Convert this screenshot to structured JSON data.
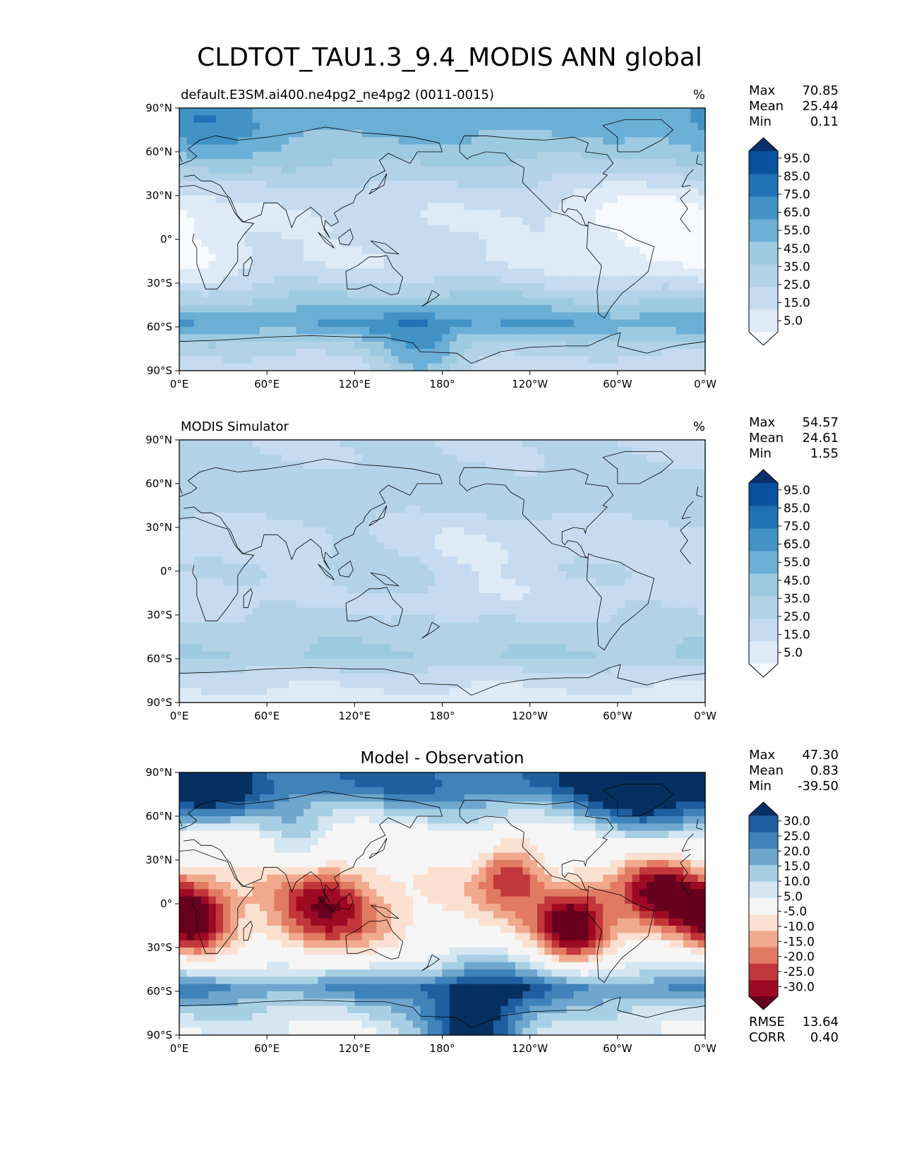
{
  "figure_title": "CLDTOT_TAU1.3_9.4_MODIS ANN global",
  "colors": {
    "blues": [
      "#f7fbff",
      "#deebf7",
      "#c6dbef",
      "#b2d2e8",
      "#9ecae1",
      "#6baed6",
      "#4292c6",
      "#2171b5",
      "#08519c",
      "#08306b"
    ],
    "diverging": [
      "#67001f",
      "#9e0a24",
      "#c1373a",
      "#e17a63",
      "#f0a98c",
      "#fbe0d1",
      "#f5f5f5",
      "#d4e6f1",
      "#a7cfe4",
      "#6ea6ce",
      "#3f83ba",
      "#1f5fa0",
      "#053061"
    ],
    "coastline": "#000000"
  },
  "panels": [
    {
      "id": "test",
      "left_title": "default.E3SM.ai400.ne4pg2_ne4pg2 (0011-0015)",
      "center_title": "",
      "units": "%",
      "stats": [
        {
          "label": "Max",
          "value": "70.85"
        },
        {
          "label": "Mean",
          "value": "25.44"
        },
        {
          "label": "Min",
          "value": "0.11"
        }
      ],
      "colorbar_ticks": [
        "95.0",
        "85.0",
        "75.0",
        "65.0",
        "55.0",
        "45.0",
        "35.0",
        "25.0",
        "15.0",
        "5.0"
      ],
      "extra_stats": []
    },
    {
      "id": "reference",
      "left_title": "MODIS Simulator",
      "center_title": "",
      "units": "%",
      "stats": [
        {
          "label": "Max",
          "value": "54.57"
        },
        {
          "label": "Mean",
          "value": "24.61"
        },
        {
          "label": "Min",
          "value": "1.55"
        }
      ],
      "colorbar_ticks": [
        "95.0",
        "85.0",
        "75.0",
        "65.0",
        "55.0",
        "45.0",
        "35.0",
        "25.0",
        "15.0",
        "5.0"
      ],
      "extra_stats": []
    },
    {
      "id": "difference",
      "left_title": "",
      "center_title": "Model - Observation",
      "units": "",
      "stats": [
        {
          "label": "Max",
          "value": "47.30"
        },
        {
          "label": "Mean",
          "value": "0.83"
        },
        {
          "label": "Min",
          "value": "-39.50"
        }
      ],
      "colorbar_ticks": [
        "30.0",
        "25.0",
        "20.0",
        "15.0",
        "10.0",
        "5.0",
        "-5.0",
        "-10.0",
        "-15.0",
        "-20.0",
        "-25.0",
        "-30.0"
      ],
      "extra_stats": [
        {
          "label": "RMSE",
          "value": "13.64"
        },
        {
          "label": "CORR",
          "value": "0.40"
        }
      ]
    }
  ],
  "axes": {
    "x_ticks": [
      "0°E",
      "60°E",
      "120°E",
      "180°",
      "120°W",
      "60°W",
      "0°W"
    ],
    "y_ticks": [
      "90°N",
      "60°N",
      "30°N",
      "0°",
      "30°S",
      "60°S",
      "90°S"
    ]
  },
  "chart_data": [
    {
      "type": "heatmap",
      "title": "default.E3SM.ai400.ne4pg2_ne4pg2 (0011-0015)",
      "units": "%",
      "x_range": [
        0,
        360
      ],
      "y_range": [
        -90,
        90
      ],
      "levels": [
        0,
        5,
        15,
        25,
        35,
        45,
        55,
        65,
        75,
        85,
        95
      ],
      "stats": {
        "max": 70.85,
        "mean": 25.44,
        "min": 0.11
      },
      "zonal_pattern": [
        {
          "lat": 80,
          "value": 50
        },
        {
          "lat": 60,
          "value": 40
        },
        {
          "lat": 45,
          "value": 30
        },
        {
          "lat": 30,
          "value": 20
        },
        {
          "lat": 15,
          "value": 15
        },
        {
          "lat": 0,
          "value": 18
        },
        {
          "lat": -15,
          "value": 15
        },
        {
          "lat": -30,
          "value": 25
        },
        {
          "lat": -45,
          "value": 42
        },
        {
          "lat": -58,
          "value": 55
        },
        {
          "lat": -70,
          "value": 35
        },
        {
          "lat": -85,
          "value": 20
        }
      ]
    },
    {
      "type": "heatmap",
      "title": "MODIS Simulator",
      "units": "%",
      "x_range": [
        0,
        360
      ],
      "y_range": [
        -90,
        90
      ],
      "levels": [
        0,
        5,
        15,
        25,
        35,
        45,
        55,
        65,
        75,
        85,
        95
      ],
      "stats": {
        "max": 54.57,
        "mean": 24.61,
        "min": 1.55
      },
      "zonal_pattern": [
        {
          "lat": 80,
          "value": 25
        },
        {
          "lat": 60,
          "value": 30
        },
        {
          "lat": 45,
          "value": 30
        },
        {
          "lat": 30,
          "value": 22
        },
        {
          "lat": 15,
          "value": 20
        },
        {
          "lat": 0,
          "value": 25
        },
        {
          "lat": -15,
          "value": 20
        },
        {
          "lat": -30,
          "value": 25
        },
        {
          "lat": -45,
          "value": 32
        },
        {
          "lat": -58,
          "value": 36
        },
        {
          "lat": -70,
          "value": 22
        },
        {
          "lat": -85,
          "value": 12
        }
      ]
    },
    {
      "type": "heatmap",
      "title": "Model - Observation",
      "units": "",
      "x_range": [
        0,
        360
      ],
      "y_range": [
        -90,
        90
      ],
      "levels": [
        -40,
        -30,
        -25,
        -20,
        -15,
        -10,
        -5,
        5,
        10,
        15,
        20,
        25,
        30,
        40
      ],
      "stats": {
        "max": 47.3,
        "mean": 0.83,
        "min": -39.5,
        "rmse": 13.64,
        "corr": 0.4
      },
      "zonal_pattern": [
        {
          "lat": 80,
          "value": 25
        },
        {
          "lat": 60,
          "value": 10
        },
        {
          "lat": 45,
          "value": 0
        },
        {
          "lat": 30,
          "value": 0
        },
        {
          "lat": 15,
          "value": -5
        },
        {
          "lat": 0,
          "value": -7
        },
        {
          "lat": -15,
          "value": -5
        },
        {
          "lat": -30,
          "value": 0
        },
        {
          "lat": -45,
          "value": 10
        },
        {
          "lat": -58,
          "value": 22
        },
        {
          "lat": -70,
          "value": 12
        },
        {
          "lat": -85,
          "value": 5
        }
      ]
    }
  ]
}
